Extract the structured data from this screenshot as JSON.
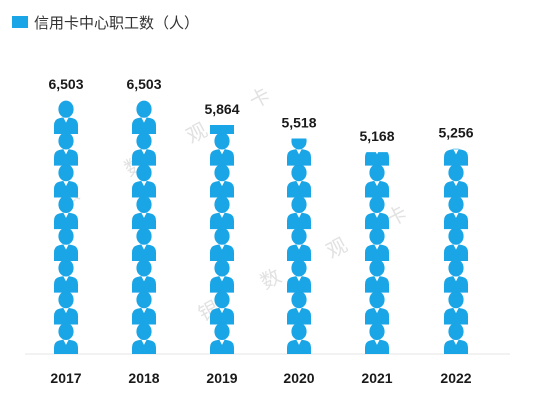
{
  "chart_data": {
    "type": "bar",
    "title": "信用卡中心职工数（人）",
    "categories": [
      "2017",
      "2018",
      "2019",
      "2020",
      "2021",
      "2022"
    ],
    "series": [
      {
        "name": "信用卡中心职工数（人）",
        "values": [
          6503,
          6503,
          5864,
          5518,
          5168,
          5256
        ]
      }
    ],
    "value_labels": [
      "6,503",
      "6,503",
      "5,864",
      "5,518",
      "5,168",
      "5,256"
    ],
    "ylim": [
      0,
      6503
    ],
    "pictogram_icon": "person-icon",
    "color": "#1aa5e6",
    "legend": "top-left",
    "grid": false
  },
  "watermarks": [
    "银",
    "数",
    "观",
    "卡",
    "银",
    "数",
    "观",
    "卡"
  ]
}
